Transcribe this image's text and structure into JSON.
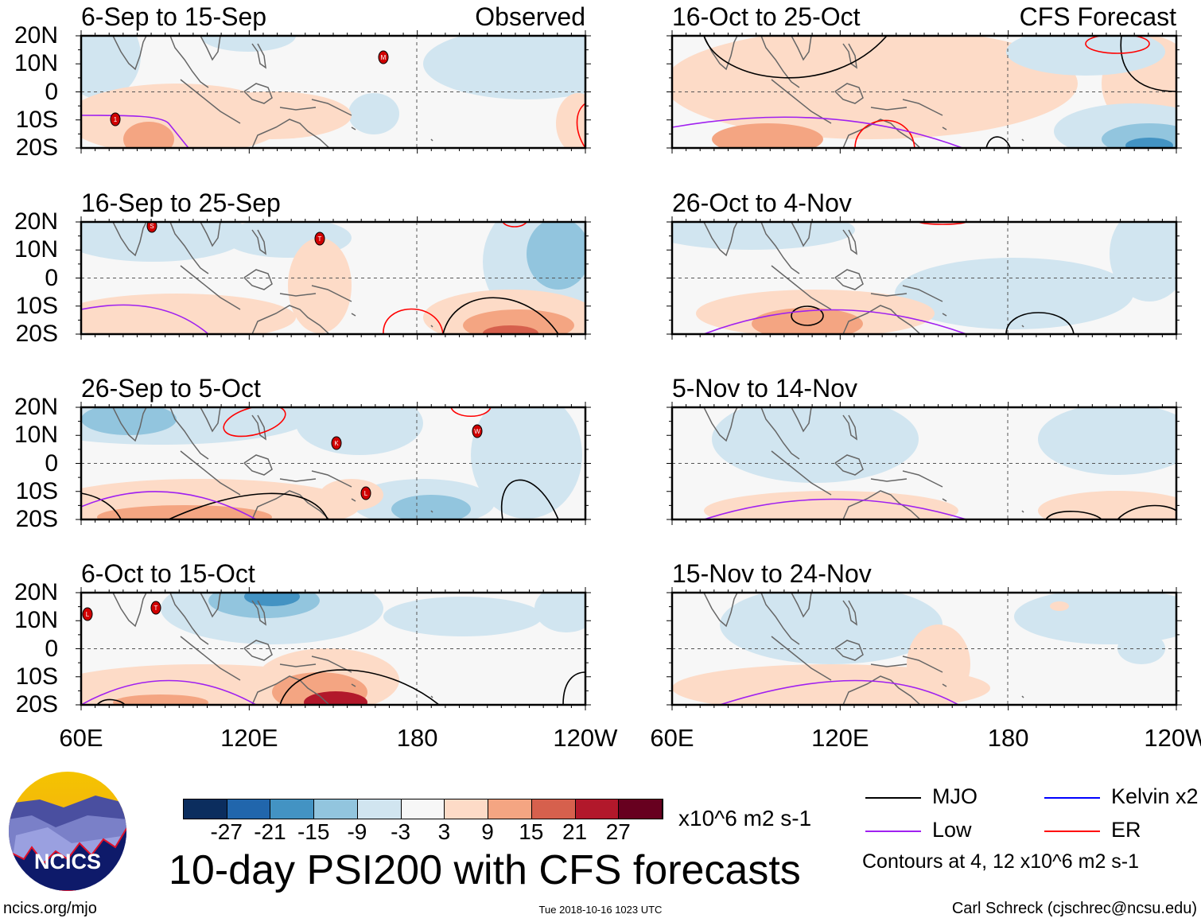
{
  "panels": [
    {
      "title": "6-Sep to 15-Sep",
      "tag": "Observed",
      "storms": [
        "M",
        "1"
      ]
    },
    {
      "title": "16-Sep to 25-Sep",
      "storms": [
        "S",
        "T"
      ]
    },
    {
      "title": "26-Sep to 5-Oct",
      "storms": [
        "K",
        "W",
        "L"
      ]
    },
    {
      "title": "6-Oct to 15-Oct",
      "storms": [
        "L",
        "T"
      ]
    },
    {
      "title": "16-Oct to 25-Oct",
      "tag": "CFS Forecast",
      "storms": []
    },
    {
      "title": "26-Oct to 4-Nov",
      "storms": []
    },
    {
      "title": "5-Nov to 14-Nov",
      "storms": []
    },
    {
      "title": "15-Nov to 24-Nov",
      "storms": []
    }
  ],
  "y_ticks": [
    "20N",
    "10N",
    "0",
    "10S",
    "20S"
  ],
  "x_ticks": [
    "60E",
    "120E",
    "180",
    "120W"
  ],
  "colorbar": {
    "colors": [
      "#0b2d5e",
      "#2166ac",
      "#4393c3",
      "#92c5de",
      "#d1e5f0",
      "#f7f7f7",
      "#fddbc7",
      "#f4a582",
      "#d6604d",
      "#b2182b",
      "#67001f"
    ],
    "labels": [
      "-27",
      "-21",
      "-15",
      "-9",
      "-3",
      "3",
      "9",
      "15",
      "21",
      "27"
    ],
    "units": "x10^6 m2 s-1"
  },
  "title": "10-day PSI200 with CFS forecasts",
  "legend": {
    "items": [
      {
        "label": "MJO",
        "color": "#000000"
      },
      {
        "label": "Kelvin x2",
        "color": "#0000ff"
      },
      {
        "label": "Low",
        "color": "#a020f0"
      },
      {
        "label": "ER",
        "color": "#ff0000"
      }
    ],
    "contours_note": "Contours at 4, 12 x10^6 m2 s-1"
  },
  "logo": {
    "text": "NCICS"
  },
  "footer": {
    "url": "ncics.org/mjo",
    "timestamp": "Tue 2018-10-16 1023 UTC",
    "author": "Carl Schreck (cjschrec@ncsu.edu)"
  }
}
